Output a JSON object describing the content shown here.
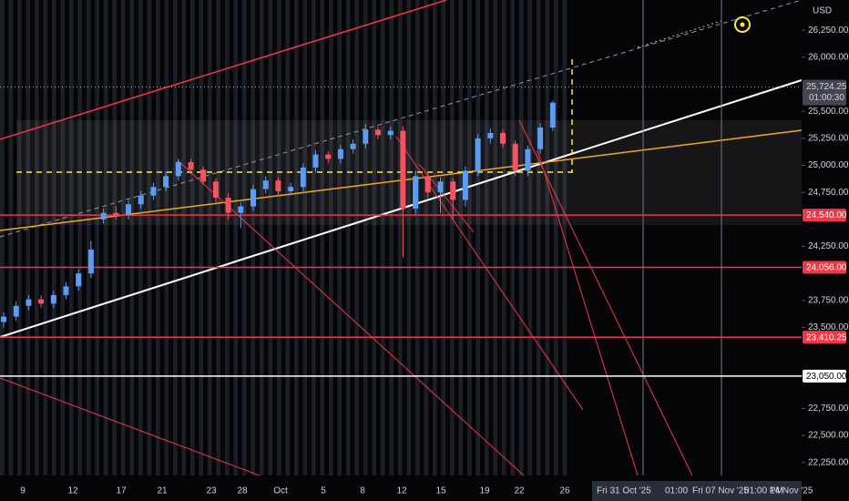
{
  "chart_data": {
    "type": "candlestick",
    "currency": "USD",
    "up_color": "#5b9cf6",
    "down_color": "#f7525f",
    "open": [
      23550,
      23600,
      23700,
      23760,
      23720,
      23800,
      23880,
      24000,
      24500,
      24560,
      24540,
      24640,
      24720,
      24800,
      24900,
      25030,
      24960,
      24850,
      24700,
      24560,
      24620,
      24780,
      24860,
      24760,
      24800,
      24980,
      25100,
      25060,
      25150,
      25200,
      25330,
      25280,
      25320,
      24600,
      24900,
      24750,
      24850,
      24680,
      24950,
      25250,
      25300,
      25200,
      24950,
      25150,
      25350
    ],
    "high": [
      23640,
      23740,
      23800,
      23800,
      23840,
      23920,
      24040,
      24300,
      24600,
      24620,
      24680,
      24760,
      24840,
      24940,
      25060,
      25060,
      24990,
      24880,
      24740,
      24660,
      24820,
      24900,
      24890,
      24840,
      25020,
      25140,
      25130,
      25190,
      25240,
      25380,
      25360,
      25360,
      25360,
      24950,
      24940,
      24890,
      24880,
      24990,
      25290,
      25340,
      25330,
      25230,
      25180,
      25390,
      25600
    ],
    "low": [
      23500,
      23560,
      23660,
      23680,
      23680,
      23760,
      23840,
      23960,
      24460,
      24500,
      24500,
      24600,
      24680,
      24760,
      24860,
      24920,
      24820,
      24660,
      24500,
      24420,
      24580,
      24740,
      24720,
      24720,
      24760,
      24940,
      25020,
      25020,
      25110,
      25160,
      25240,
      25240,
      24150,
      24550,
      24700,
      24560,
      24500,
      24620,
      24900,
      25200,
      25160,
      24900,
      24900,
      25110,
      25320
    ],
    "close": [
      23600,
      23700,
      23760,
      23720,
      23800,
      23880,
      24000,
      24220,
      24560,
      24540,
      24640,
      24720,
      24800,
      24900,
      25030,
      24960,
      24850,
      24700,
      24560,
      24620,
      24780,
      24860,
      24760,
      24800,
      24980,
      25100,
      25060,
      25150,
      25200,
      25330,
      25280,
      25320,
      24600,
      24900,
      24750,
      24850,
      24680,
      24950,
      25250,
      25300,
      25200,
      24950,
      25150,
      25350,
      25580
    ],
    "ylim": [
      22130,
      26530
    ],
    "yticks": [
      {
        "value": 26250,
        "label": "26,250.00"
      },
      {
        "value": 26000,
        "label": "26,000.00"
      },
      {
        "value": 25500,
        "label": "25,500.00"
      },
      {
        "value": 25250,
        "label": "25,250.00"
      },
      {
        "value": 25000,
        "label": "25,000.00"
      },
      {
        "value": 24750,
        "label": "24,750.00"
      },
      {
        "value": 24250,
        "label": "24,250.00"
      },
      {
        "value": 23750,
        "label": "23,750.00"
      },
      {
        "value": 23500,
        "label": "23,500.00"
      },
      {
        "value": 22750,
        "label": "22,750.00"
      },
      {
        "value": 22500,
        "label": "22,500.00"
      },
      {
        "value": 22250,
        "label": "22,250.00"
      }
    ],
    "current_price": {
      "value": 25724.25,
      "label": "25,724.25"
    },
    "countdown": "01:00:30",
    "levels": [
      {
        "value": 24540,
        "label": "24,540.00",
        "color": "#f23645"
      },
      {
        "value": 24056,
        "label": "24,056.00",
        "color": "#f23645"
      },
      {
        "value": 23410.25,
        "label": "23,410.25",
        "color": "#f23645"
      },
      {
        "value": 23050,
        "label": "23,050.00",
        "color": "#ffffff"
      }
    ],
    "x_axis_labels": [
      "9",
      "12",
      "17",
      "21",
      "23",
      "28",
      "Oct",
      "5",
      "8",
      "12",
      "15",
      "19",
      "22",
      "26"
    ],
    "future_labels": [
      "Fri 31 Oct '25",
      "01:00",
      "Fri 07 Nov '25",
      "01:00 PM",
      "14 Nov '25"
    ]
  }
}
